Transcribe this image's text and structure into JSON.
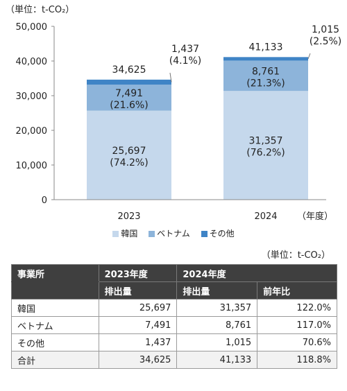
{
  "unit_label": "（単位：t-CO₂）",
  "colors": {
    "korea": "#c5d8ec",
    "vietnam": "#8db4da",
    "other": "#3f84c6",
    "axis": "#888888"
  },
  "chart_data": {
    "type": "bar",
    "stacked": true,
    "categories": [
      "2023",
      "2024"
    ],
    "x_unit_label": "（年度）",
    "ylim": [
      0,
      50000
    ],
    "yticks": [
      0,
      10000,
      20000,
      30000,
      40000,
      50000
    ],
    "ytick_labels": [
      "0",
      "10,000",
      "20,000",
      "30,000",
      "40,000",
      "50,000"
    ],
    "series": [
      {
        "name": "韓国",
        "key": "korea",
        "values": [
          25697,
          31357
        ],
        "labels": [
          "25,697",
          "31,357"
        ],
        "pct_labels": [
          "(74.2%)",
          "(76.2%)"
        ]
      },
      {
        "name": "ベトナム",
        "key": "vietnam",
        "values": [
          7491,
          8761
        ],
        "labels": [
          "7,491",
          "8,761"
        ],
        "pct_labels": [
          "(21.6%)",
          "(21.3%)"
        ]
      },
      {
        "name": "その他",
        "key": "other",
        "values": [
          1437,
          1015
        ],
        "labels": [
          "1,437",
          "1,015"
        ],
        "pct_labels": [
          "(4.1%)",
          "(2.5%)"
        ]
      }
    ],
    "totals": [
      34625,
      41133
    ],
    "total_labels": [
      "34,625",
      "41,133"
    ],
    "legend": "bottom"
  },
  "table": {
    "unit_label": "（単位：t-CO₂）",
    "header": {
      "col0": "事業所",
      "col2023": "2023年度",
      "col2024": "2024年度",
      "sub_emission_2023": "排出量",
      "sub_emission_2024": "排出量",
      "sub_yoy": "前年比"
    },
    "rows": [
      {
        "label": "韓国",
        "v2023": "25,697",
        "v2024": "31,357",
        "yoy": "122.0%"
      },
      {
        "label": "ベトナム",
        "v2023": "7,491",
        "v2024": "8,761",
        "yoy": "117.0%"
      },
      {
        "label": "その他",
        "v2023": "1,437",
        "v2024": "1,015",
        "yoy": "70.6%"
      },
      {
        "label": "合計",
        "v2023": "34,625",
        "v2024": "41,133",
        "yoy": "118.8%"
      }
    ]
  }
}
